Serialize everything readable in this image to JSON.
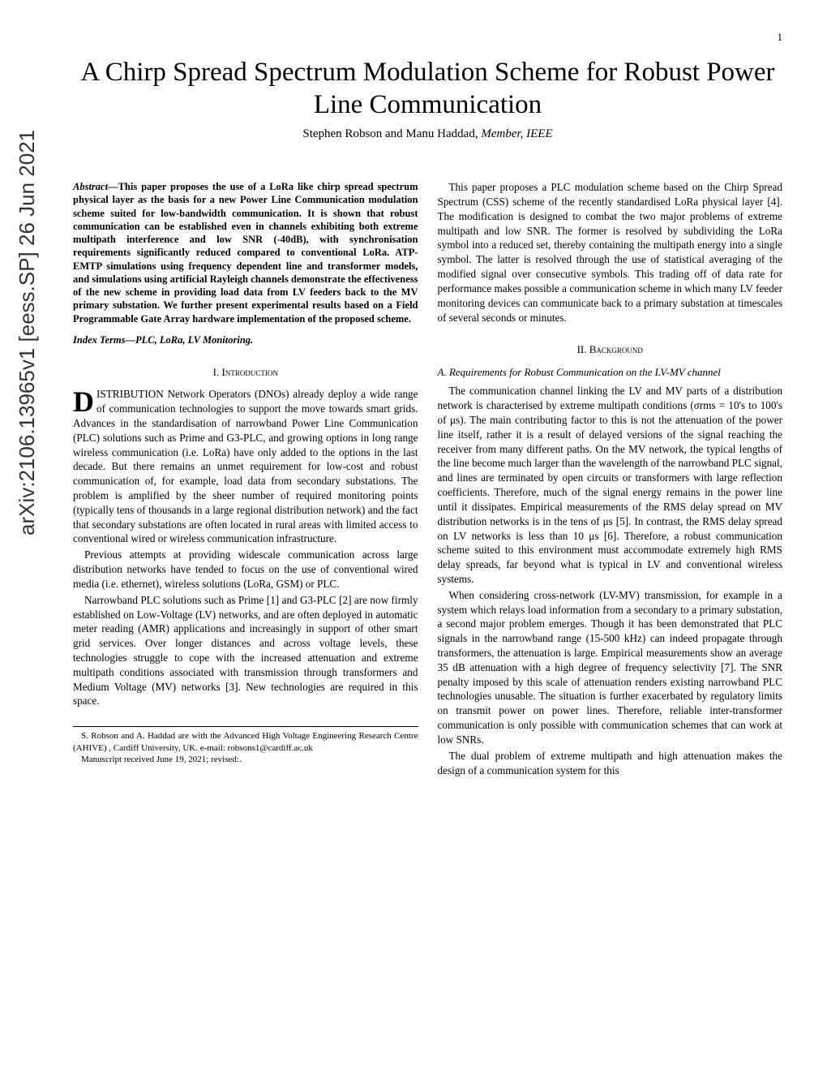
{
  "page_number": "1",
  "arxiv_id": "arXiv:2106.13965v1 [eess.SP] 26 Jun 2021",
  "title": "A Chirp Spread Spectrum Modulation Scheme for Robust Power Line Communication",
  "authors_prefix": "Stephen Robson and Manu Haddad, ",
  "authors_suffix": "Member, IEEE",
  "abstract_label": "Abstract—",
  "abstract_text": "This paper proposes the use of a LoRa like chirp spread spectrum physical layer as the basis for a new Power Line Communication modulation scheme suited for low-bandwidth communication. It is shown that robust communication can be established even in channels exhibiting both extreme multipath interference and low SNR (-40dB), with synchronisation requirements significantly reduced compared to conventional LoRa. ATP-EMTP simulations using frequency dependent line and transformer models, and simulations using artificial Rayleigh channels demonstrate the effectiveness of the new scheme in providing load data from LV feeders back to the MV primary substation. We further present experimental results based on a Field Programmable Gate Array hardware implementation of the proposed scheme.",
  "index_terms_label": "Index Terms—",
  "index_terms_text": "PLC, LoRa, LV Monitoring.",
  "section1_heading": "I. Introduction",
  "intro_dropcap": "D",
  "intro_p1": "ISTRIBUTION Network Operators (DNOs) already deploy a wide range of communication technologies to support the move towards smart grids. Advances in the standardisation of narrowband Power Line Communication (PLC) solutions such as Prime and G3-PLC, and growing options in long range wireless communication (i.e. LoRa) have only added to the options in the last decade. But there remains an unmet requirement for low-cost and robust communication of, for example, load data from secondary substations. The problem is amplified by the sheer number of required monitoring points (typically tens of thousands in a large regional distribution network) and the fact that secondary substations are often located in rural areas with limited access to conventional wired or wireless communication infrastructure.",
  "intro_p2": "Previous attempts at providing widescale communication across large distribution networks have tended to focus on the use of conventional wired media (i.e. ethernet), wireless solutions (LoRa, GSM) or PLC.",
  "intro_p3": "Narrowband PLC solutions such as Prime [1] and G3-PLC [2] are now firmly established on Low-Voltage (LV) networks, and are often deployed in automatic meter reading (AMR) applications and increasingly in support of other smart grid services. Over longer distances and across voltage levels, these technologies struggle to cope with the increased attenuation and extreme multipath conditions associated with transmission through transformers and Medium Voltage (MV) networks [3]. New technologies are required in this space.",
  "footer_p1": "S. Robson and A. Haddad are with the Advanced High Voltage Engineering Research Centre (AHIVE) , Cardiff University, UK. e-mail: robsons1@cardiff.ac.uk",
  "footer_p2": "Manuscript received June 19, 2021; revised:.",
  "col2_p1": "This paper proposes a PLC modulation scheme based on the Chirp Spread Spectrum (CSS) scheme of the recently standardised LoRa physical layer [4]. The modification is designed to combat the two major problems of extreme multipath and low SNR. The former is resolved by subdividing the LoRa symbol into a reduced set, thereby containing the multipath energy into a single symbol. The latter is resolved through the use of statistical averaging of the modified signal over consecutive symbols. This trading off of data rate for performance makes possible a communication scheme in which many LV feeder monitoring devices can communicate back to a primary substation at timescales of several seconds or minutes.",
  "section2_heading": "II. Background",
  "subsection_a": "A. Requirements for Robust Communication on the LV-MV channel",
  "bg_p1": "The communication channel linking the LV and MV parts of a distribution network is characterised by extreme multipath conditions (σrms = 10's to 100's of μs). The main contributing factor to this is not the attenuation of the power line itself, rather it is a result of delayed versions of the signal reaching the receiver from many different paths. On the MV network, the typical lengths of the line become much larger than the wavelength of the narrowband PLC signal, and lines are terminated by open circuits or transformers with large reflection coefficients. Therefore, much of the signal energy remains in the power line until it dissipates. Empirical measurements of the RMS delay spread on MV distribution networks is in the tens of μs [5]. In contrast, the RMS delay spread on LV networks is less than 10 μs [6]. Therefore, a robust communication scheme suited to this environment must accommodate extremely high RMS delay spreads, far beyond what is typical in LV and conventional wireless systems.",
  "bg_p2": "When considering cross-network (LV-MV) transmission, for example in a system which relays load information from a secondary to a primary substation, a second major problem emerges. Though it has been demonstrated that PLC signals in the narrowband range (15-500 kHz) can indeed propagate through transformers, the attenuation is large. Empirical measurements show an average 35 dB attenuation with a high degree of frequency selectivity [7]. The SNR penalty imposed by this scale of attenuation renders existing narrowband PLC technologies unusable. The situation is further exacerbated by regulatory limits on transmit power on power lines. Therefore, reliable inter-transformer communication is only possible with communication schemes that can work at low SNRs.",
  "bg_p3": "The dual problem of extreme multipath and high attenuation makes the design of a communication system for this"
}
